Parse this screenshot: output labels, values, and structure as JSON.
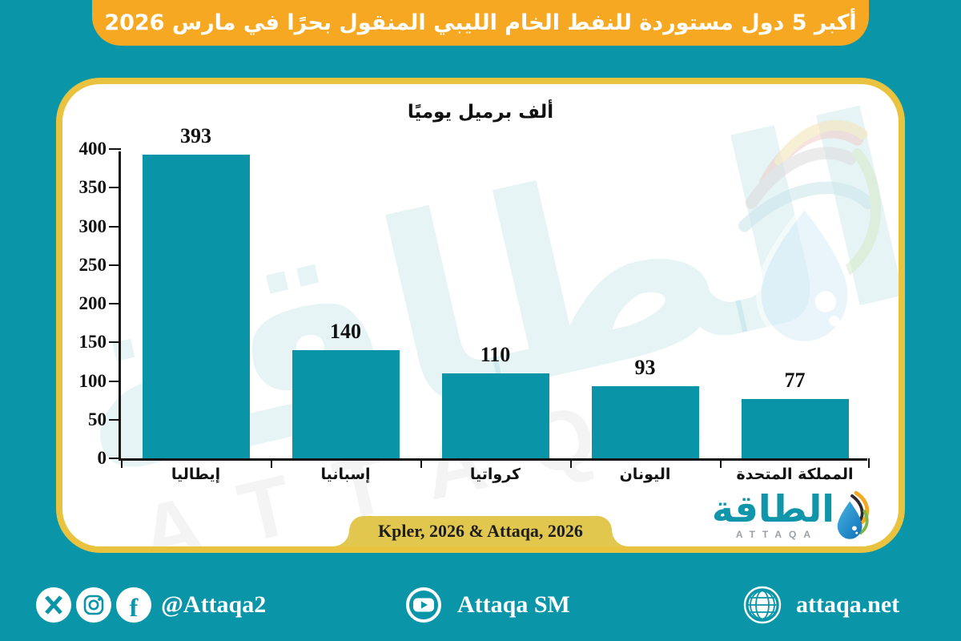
{
  "banner": {
    "title": "أكبر 5 دول مستوردة للنفط الخام الليبي المنقول بحرًا في مارس 2026"
  },
  "chart_data": {
    "type": "bar",
    "figure_title": "أكبر 5 دول مستوردة للنفط الخام الليبي المنقول بحرًا في مارس 2026",
    "title": "ألف برميل يوميًا",
    "categories": [
      "إيطاليا",
      "إسبانيا",
      "كرواتيا",
      "اليونان",
      "المملكة المتحدة"
    ],
    "values": [
      393,
      140,
      110,
      93,
      77
    ],
    "ylim": [
      0,
      400
    ],
    "ytick_step": 50,
    "grid": false,
    "legend": "none",
    "value_labels": true,
    "bar_color": "#0a94a8"
  },
  "source": {
    "label": "Kpler, 2026 & Attaqa, 2026"
  },
  "logo": {
    "arabic": "الطاقة",
    "latin": "ATTAQA"
  },
  "watermark": {
    "arabic": "الطاقة",
    "latin": "ATTAQA"
  },
  "footer": {
    "social_handle": "@Attaqa2",
    "youtube_label": "Attaqa SM",
    "website": "attaqa.net",
    "icons": [
      "x-icon",
      "instagram-icon",
      "facebook-icon",
      "youtube-icon",
      "globe-icon"
    ]
  },
  "colors": {
    "background": "#0a95a8",
    "banner": "#f7a823",
    "card_border": "#e9c33f",
    "source_tab": "#e2c74e",
    "bar": "#0a94a8",
    "logo_teal": "#1095aa"
  }
}
